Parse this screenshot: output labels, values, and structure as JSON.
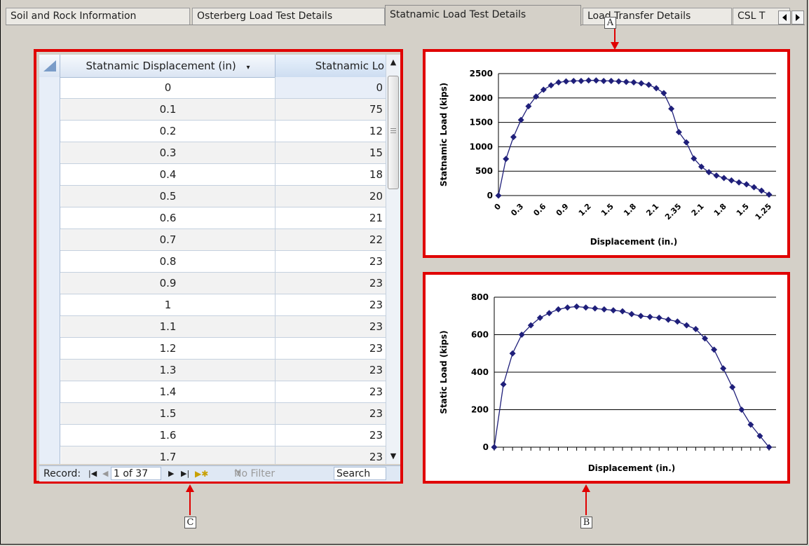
{
  "tabs": [
    {
      "label": "Soil and Rock Information",
      "active": false
    },
    {
      "label": "Osterberg Load Test Details",
      "active": false
    },
    {
      "label": "Statnamic Load Test Details",
      "active": true
    },
    {
      "label": "Load Transfer Details",
      "active": false
    },
    {
      "label": "CSL T",
      "active": false
    }
  ],
  "tab_scroll": {
    "left_icon": "triangle-left-icon",
    "right_icon": "triangle-right-icon"
  },
  "datasheet": {
    "columns": [
      "Statnamic Displacement (in)",
      "Statnamic Lo"
    ],
    "sort_icon": "dropdown-arrow-icon",
    "rows": [
      {
        "disp": "0",
        "load": "0"
      },
      {
        "disp": "0.1",
        "load": "75"
      },
      {
        "disp": "0.2",
        "load": "12"
      },
      {
        "disp": "0.3",
        "load": "15"
      },
      {
        "disp": "0.4",
        "load": "18"
      },
      {
        "disp": "0.5",
        "load": "20"
      },
      {
        "disp": "0.6",
        "load": "21"
      },
      {
        "disp": "0.7",
        "load": "22"
      },
      {
        "disp": "0.8",
        "load": "23"
      },
      {
        "disp": "0.9",
        "load": "23"
      },
      {
        "disp": "1",
        "load": "23"
      },
      {
        "disp": "1.1",
        "load": "23"
      },
      {
        "disp": "1.2",
        "load": "23"
      },
      {
        "disp": "1.3",
        "load": "23"
      },
      {
        "disp": "1.4",
        "load": "23"
      },
      {
        "disp": "1.5",
        "load": "23"
      },
      {
        "disp": "1.6",
        "load": "23"
      },
      {
        "disp": "1.7",
        "load": "23"
      }
    ],
    "nav": {
      "record_label": "Record:",
      "position": "1 of 37",
      "filter_label": "No Filter",
      "search_label": "Search"
    }
  },
  "callouts": {
    "a": "A",
    "b": "B",
    "c": "C",
    "arrow_color": "#e00000"
  },
  "colors": {
    "highlight": "#e00000",
    "series": "#1f1f7a"
  },
  "chart_data": [
    {
      "type": "line",
      "ylabel": "Statnamic Load (kips)",
      "xlabel": "Displacement (in.)",
      "ylim": [
        0,
        2500
      ],
      "yticks": [
        0,
        500,
        1000,
        1500,
        2000,
        2500
      ],
      "xticklabels": [
        "0",
        "0.3",
        "0.6",
        "0.9",
        "1.2",
        "1.5",
        "1.8",
        "2.1",
        "2.35",
        "2.1",
        "1.8",
        "1.5",
        "1.25"
      ],
      "values": [
        0,
        750,
        1200,
        1550,
        1830,
        2030,
        2170,
        2260,
        2320,
        2340,
        2350,
        2350,
        2360,
        2360,
        2350,
        2350,
        2340,
        2330,
        2320,
        2300,
        2270,
        2200,
        2100,
        1780,
        1300,
        1090,
        760,
        590,
        480,
        410,
        360,
        310,
        270,
        230,
        170,
        100,
        20
      ]
    },
    {
      "type": "line",
      "ylabel": "Static Load (kips)",
      "xlabel": "Displacement (in.)",
      "ylim": [
        0,
        800
      ],
      "yticks": [
        0,
        200,
        400,
        600,
        800
      ],
      "values": [
        0,
        335,
        500,
        600,
        650,
        690,
        715,
        735,
        745,
        750,
        745,
        740,
        735,
        730,
        725,
        710,
        700,
        695,
        690,
        680,
        670,
        650,
        630,
        580,
        520,
        420,
        320,
        200,
        120,
        60,
        0
      ]
    }
  ]
}
